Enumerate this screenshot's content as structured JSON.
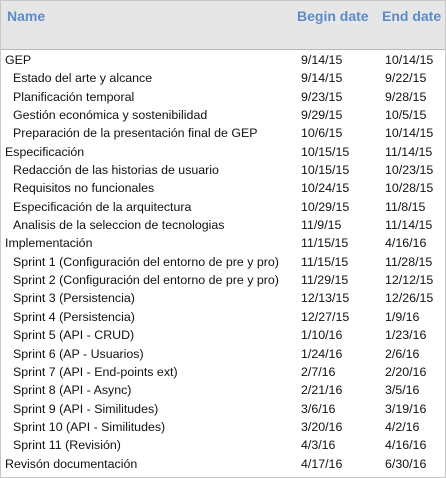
{
  "columns": {
    "name": "Name",
    "begin": "Begin date",
    "end": "End date"
  },
  "rows": [
    {
      "name": "GEP",
      "begin": "9/14/15",
      "end": "10/14/15",
      "level": 0
    },
    {
      "name": "Estado del arte y alcance",
      "begin": "9/14/15",
      "end": "9/22/15",
      "level": 1
    },
    {
      "name": "Planificación temporal",
      "begin": "9/23/15",
      "end": "9/28/15",
      "level": 1
    },
    {
      "name": "Gestión económica y sostenibilidad",
      "begin": "9/29/15",
      "end": "10/5/15",
      "level": 1
    },
    {
      "name": "Preparación de la presentación final de GEP",
      "begin": "10/6/15",
      "end": "10/14/15",
      "level": 1
    },
    {
      "name": "Especificación",
      "begin": "10/15/15",
      "end": "11/14/15",
      "level": 0
    },
    {
      "name": "Redacción de las historias de usuario",
      "begin": "10/15/15",
      "end": "10/23/15",
      "level": 1
    },
    {
      "name": "Requisitos no funcionales",
      "begin": "10/24/15",
      "end": "10/28/15",
      "level": 1
    },
    {
      "name": "Especificación de la arquitectura",
      "begin": "10/29/15",
      "end": "11/8/15",
      "level": 1
    },
    {
      "name": "Analisis de la seleccion de tecnologias",
      "begin": "11/9/15",
      "end": "11/14/15",
      "level": 1
    },
    {
      "name": "Implementación",
      "begin": "11/15/15",
      "end": "4/16/16",
      "level": 0
    },
    {
      "name": "Sprint 1 (Configuración del entorno de pre y pro)",
      "begin": "11/15/15",
      "end": "11/28/15",
      "level": 1
    },
    {
      "name": "Sprint 2 (Configuración del entorno de pre y pro)",
      "begin": "11/29/15",
      "end": "12/12/15",
      "level": 1
    },
    {
      "name": "Sprint 3 (Persistencia)",
      "begin": "12/13/15",
      "end": "12/26/15",
      "level": 1
    },
    {
      "name": "Sprint 4 (Persistencia)",
      "begin": "12/27/15",
      "end": "1/9/16",
      "level": 1
    },
    {
      "name": "Sprint 5 (API - CRUD)",
      "begin": "1/10/16",
      "end": "1/23/16",
      "level": 1
    },
    {
      "name": "Sprint 6 (AP - Usuarios)",
      "begin": "1/24/16",
      "end": "2/6/16",
      "level": 1
    },
    {
      "name": "Sprint 7 (API - End-points ext)",
      "begin": "2/7/16",
      "end": "2/20/16",
      "level": 1
    },
    {
      "name": "Sprint 8 (API - Async)",
      "begin": "2/21/16",
      "end": "3/5/16",
      "level": 1
    },
    {
      "name": "Sprint 9 (API - Similitudes)",
      "begin": "3/6/16",
      "end": "3/19/16",
      "level": 1
    },
    {
      "name": "Sprint 10 (API - Similitudes)",
      "begin": "3/20/16",
      "end": "4/2/16",
      "level": 1
    },
    {
      "name": "Sprint 11 (Revisión)",
      "begin": "4/3/16",
      "end": "4/16/16",
      "level": 1
    },
    {
      "name": "Revisón documentación",
      "begin": "4/17/16",
      "end": "6/30/16",
      "level": 0
    }
  ]
}
